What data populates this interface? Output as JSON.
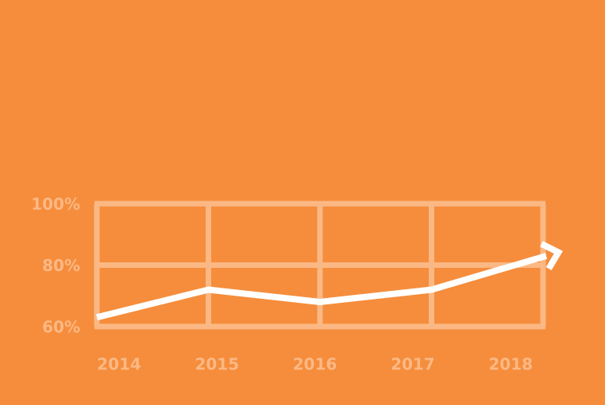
{
  "chart_data": {
    "type": "line",
    "categories": [
      "2014",
      "2015",
      "2016",
      "2017",
      "2018"
    ],
    "series": [
      {
        "color": "#ffffff",
        "values": [
          63,
          72,
          68,
          72,
          83
        ]
      }
    ],
    "ylim": [
      60,
      100
    ],
    "yticks": [
      {
        "value": 60,
        "label": "60%"
      },
      {
        "value": 80,
        "label": "80%"
      },
      {
        "value": 100,
        "label": "100%"
      }
    ],
    "grid": true
  }
}
